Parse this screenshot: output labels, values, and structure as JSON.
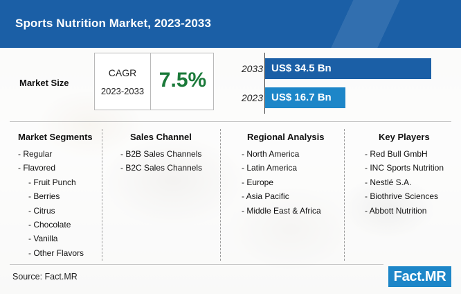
{
  "header": {
    "title": "Sports Nutrition Market, 2023-2033"
  },
  "market_size": {
    "label": "Market Size",
    "cagr_label": "CAGR",
    "cagr_period": "2023-2033",
    "cagr_value": "7.5%"
  },
  "chart_data": {
    "type": "bar",
    "orientation": "horizontal",
    "categories": [
      "2033",
      "2023"
    ],
    "values": [
      34.5,
      16.7
    ],
    "value_labels": [
      "US$ 34.5 Bn",
      "US$ 16.7 Bn"
    ],
    "xlim": [
      0,
      34.5
    ],
    "grid": false,
    "colors": [
      "#1b5fa6",
      "#1d86c8"
    ]
  },
  "segments": {
    "market_segments": {
      "title": "Market Segments",
      "items": [
        {
          "text": "- Regular",
          "level": 0
        },
        {
          "text": "- Flavored",
          "level": 0
        },
        {
          "text": "- Fruit Punch",
          "level": 1
        },
        {
          "text": "- Berries",
          "level": 1
        },
        {
          "text": "- Citrus",
          "level": 1
        },
        {
          "text": "- Chocolate",
          "level": 1
        },
        {
          "text": "- Vanilla",
          "level": 1
        },
        {
          "text": "- Other Flavors",
          "level": 1
        }
      ]
    },
    "sales_channel": {
      "title": "Sales Channel",
      "items": [
        "- B2B Sales Channels",
        "- B2C Sales Channels"
      ]
    },
    "regional_analysis": {
      "title": "Regional Analysis",
      "items": [
        "- North America",
        "- Latin America",
        "- Europe",
        "- Asia Pacific",
        "- Middle East & Africa"
      ]
    },
    "key_players": {
      "title": "Key Players",
      "items": [
        "- Red Bull GmbH",
        "- INC Sports Nutrition",
        "- Nestlé S.A.",
        "- Biothrive Sciences",
        "- Abbott Nutrition"
      ]
    }
  },
  "footer": {
    "source": "Source: Fact.MR",
    "logo": "Fact.MR"
  },
  "colors": {
    "header": "#1b5fa6",
    "accent": "#1d86c8",
    "cagr": "#1b7a3a"
  }
}
